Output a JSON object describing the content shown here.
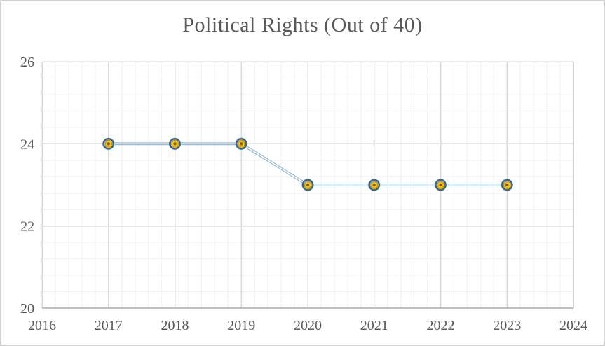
{
  "chart_data": {
    "type": "line",
    "title": "Political Rights (Out of 40)",
    "x": [
      2017,
      2018,
      2019,
      2020,
      2021,
      2022,
      2023
    ],
    "values": [
      24,
      24,
      24,
      23,
      23,
      23,
      23
    ],
    "xlim": [
      2016,
      2024
    ],
    "ylim": [
      20,
      26
    ],
    "x_major_unit": 1,
    "x_minor_unit": 0.2,
    "y_major_unit": 2,
    "y_minor_unit": 0.4,
    "x_tick_labels": [
      "2016",
      "2017",
      "2018",
      "2019",
      "2020",
      "2021",
      "2022",
      "2023",
      "2024"
    ],
    "y_tick_labels": [
      "20",
      "22",
      "24",
      "26"
    ],
    "grid": "major and minor gridlines on both axes",
    "legend_position": "none",
    "marker_shape": "circle",
    "line_style": "double",
    "colors": {
      "line": "#8FB5CC",
      "line_inner": "#FFFFFF",
      "marker_ring": "#3A698C",
      "marker_fill": "#FFC000",
      "marker_edge": "#BF9000",
      "marker_dot": "#7F6000",
      "grid_major": "#D9D9D9",
      "grid_minor": "#F2F2F2",
      "axis_line": "#BFBFBF",
      "text": "#595959",
      "title_text": "#595959"
    }
  }
}
